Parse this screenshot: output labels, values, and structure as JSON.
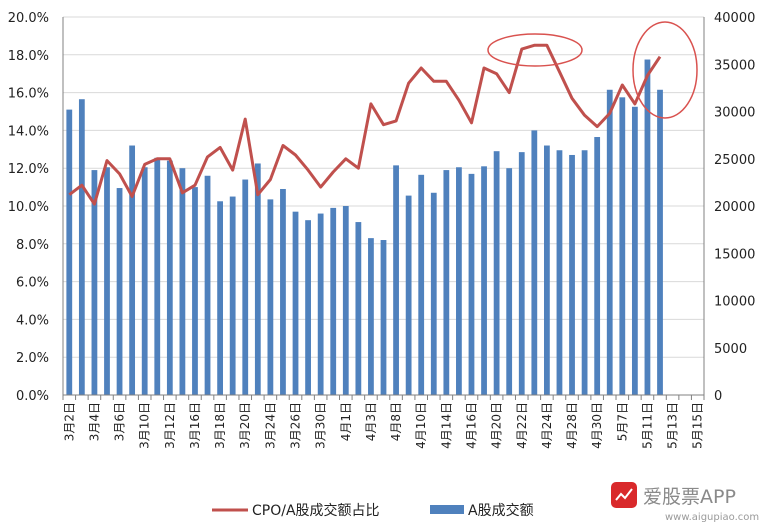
{
  "chart_data": {
    "type": "bar",
    "categories": [
      "3月2日",
      "3月3日",
      "3月4日",
      "3月5日",
      "3月6日",
      "3月9日",
      "3月10日",
      "3月11日",
      "3月12日",
      "3月13日",
      "3月16日",
      "3月17日",
      "3月18日",
      "3月19日",
      "3月20日",
      "3月23日",
      "3月24日",
      "3月25日",
      "3月26日",
      "3月27日",
      "3月30日",
      "3月31日",
      "4月1日",
      "4月2日",
      "4月3日",
      "4月7日",
      "4月8日",
      "4月9日",
      "4月10日",
      "4月13日",
      "4月14日",
      "4月15日",
      "4月16日",
      "4月17日",
      "4月20日",
      "4月21日",
      "4月22日",
      "4月23日",
      "4月24日",
      "4月27日",
      "4月28日",
      "4月29日",
      "4月30日",
      "5月6日",
      "5月7日",
      "5月8日",
      "5月11日",
      "5月12日",
      "5月13日",
      "5月14日",
      "5月15日"
    ],
    "x_tick_labels": [
      "3月2日",
      "3月4日",
      "3月6日",
      "3月10日",
      "3月12日",
      "3月16日",
      "3月18日",
      "3月20日",
      "3月24日",
      "3月26日",
      "3月30日",
      "4月1日",
      "4月3日",
      "4月8日",
      "4月10日",
      "4月14日",
      "4月16日",
      "4月20日",
      "4月22日",
      "4月24日",
      "4月28日",
      "4月30日",
      "5月7日",
      "5月11日",
      "5月13日",
      "5月15日"
    ],
    "series": [
      {
        "name": "A股成交额",
        "type": "bar",
        "axis": "right",
        "color": "#4f81bd",
        "values": [
          30200,
          31300,
          23800,
          24100,
          21900,
          26400,
          24100,
          25100,
          24800,
          24000,
          22000,
          23200,
          20500,
          21000,
          22800,
          24500,
          20700,
          21800,
          19400,
          18500,
          19200,
          19800,
          20000,
          18300,
          16600,
          16400,
          24300,
          21100,
          23300,
          21400,
          23800,
          24100,
          23400,
          24200,
          25800,
          24000,
          25700,
          28000,
          26400,
          25900,
          25400,
          25900,
          27300,
          32300,
          31500,
          30500,
          35500,
          32300,
          null,
          null,
          null
        ]
      },
      {
        "name": "CPO/A股成交额占比",
        "type": "line",
        "axis": "left",
        "color": "#c0504d",
        "values": [
          10.6,
          11.1,
          10.1,
          12.4,
          11.7,
          10.5,
          12.2,
          12.5,
          12.5,
          10.7,
          11.1,
          12.6,
          13.1,
          11.9,
          14.6,
          10.6,
          11.4,
          13.2,
          12.7,
          11.9,
          11.0,
          11.8,
          12.5,
          12.0,
          15.4,
          14.3,
          14.5,
          16.5,
          17.3,
          16.6,
          16.6,
          15.6,
          14.4,
          17.3,
          17.0,
          16.0,
          18.3,
          18.5,
          18.5,
          17.1,
          15.7,
          14.8,
          14.2,
          14.9,
          16.4,
          15.4,
          16.9,
          17.9,
          null,
          null,
          null
        ]
      }
    ],
    "y_left": {
      "min": 0,
      "max": 20,
      "ticks": [
        "0.0%",
        "2.0%",
        "4.0%",
        "6.0%",
        "8.0%",
        "10.0%",
        "12.0%",
        "14.0%",
        "16.0%",
        "18.0%",
        "20.0%"
      ]
    },
    "y_right": {
      "min": 0,
      "max": 40000,
      "ticks": [
        "0",
        "5000",
        "10000",
        "15000",
        "20000",
        "25000",
        "30000",
        "35000",
        "40000"
      ]
    },
    "grid": true,
    "legend_position": "bottom",
    "annotations": [
      "circle around 4月22日–4月24日 peak",
      "circle around 5月11日–5月12日 peak"
    ]
  },
  "legend": {
    "line_label": "CPO/A股成交额占比",
    "bar_label": "A股成交额"
  },
  "watermark": {
    "app_name": "爱股票APP",
    "url": "www.aigupiao.com",
    "logo_text": "爱股票"
  }
}
